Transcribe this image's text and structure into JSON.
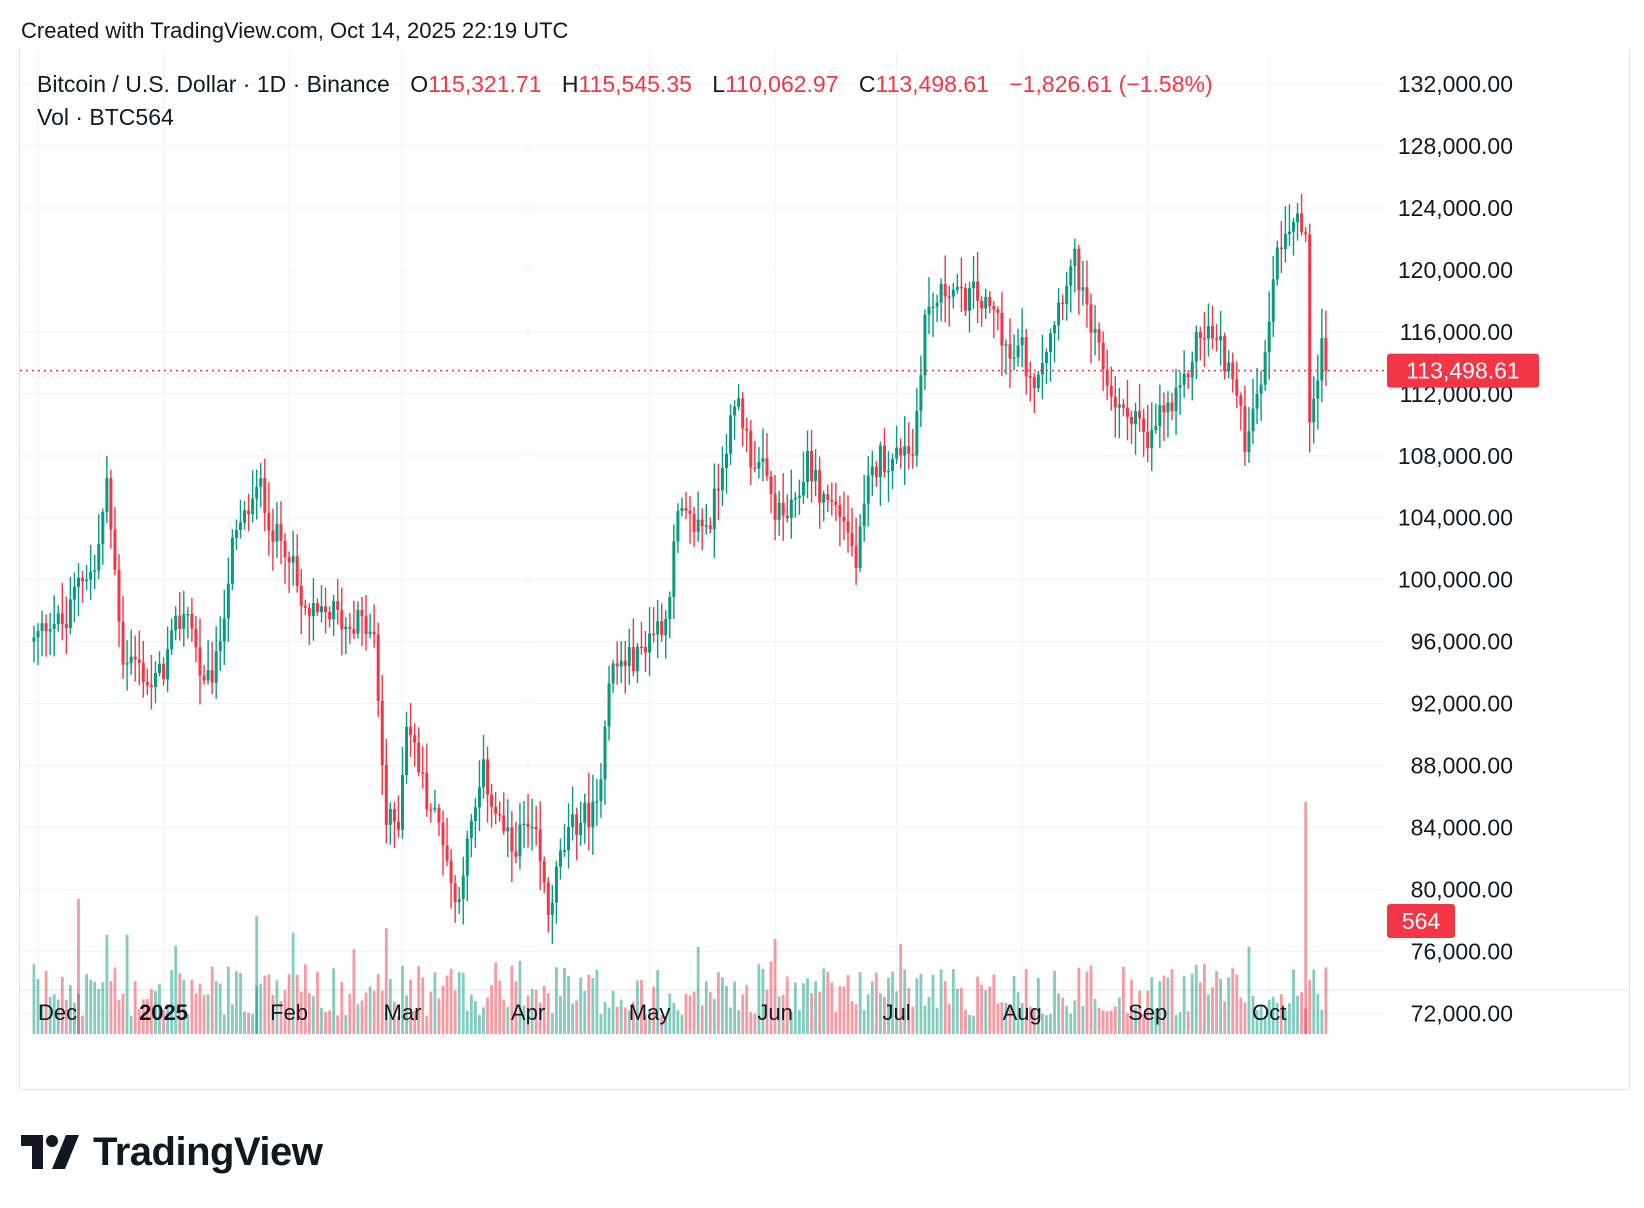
{
  "header": {
    "created_text": "Created with TradingView.com, Oct 14, 2025 22:19 UTC"
  },
  "legend": {
    "symbol": "Bitcoin / U.S. Dollar · 1D · Binance",
    "o_label": "O",
    "o_value": "115,321.71",
    "h_label": "H",
    "h_value": "115,545.35",
    "l_label": "L",
    "l_value": "110,062.97",
    "c_label": "C",
    "c_value": "113,498.61",
    "change": "−1,826.61 (−1.58%)",
    "vol_label": "Vol · BTC",
    "vol_value": "564"
  },
  "branding": {
    "name": "TradingView"
  },
  "colors": {
    "up": "#089981",
    "down": "#f23645",
    "grid": "#f0f3fa",
    "text": "#131722"
  },
  "chart_data": {
    "type": "candlestick",
    "title": "Bitcoin / U.S. Dollar · 1D · Binance",
    "y_ticks": [
      "72,000.00",
      "76,000.00",
      "80,000.00",
      "84,000.00",
      "88,000.00",
      "92,000.00",
      "96,000.00",
      "100,000.00",
      "104,000.00",
      "108,000.00",
      "112,000.00",
      "116,000.00",
      "120,000.00",
      "124,000.00",
      "128,000.00",
      "132,000.00"
    ],
    "y_range": [
      70600,
      134200
    ],
    "x_labels": [
      {
        "label": "Dec",
        "bold": false,
        "day": 0
      },
      {
        "label": "2025",
        "bold": true,
        "day": 31
      },
      {
        "label": "Feb",
        "bold": false,
        "day": 62
      },
      {
        "label": "Mar",
        "bold": false,
        "day": 90
      },
      {
        "label": "Apr",
        "bold": false,
        "day": 121
      },
      {
        "label": "May",
        "bold": false,
        "day": 151
      },
      {
        "label": "Jun",
        "bold": false,
        "day": 182
      },
      {
        "label": "Jul",
        "bold": false,
        "day": 212
      },
      {
        "label": "Aug",
        "bold": false,
        "day": 243
      },
      {
        "label": "Sep",
        "bold": false,
        "day": 274
      },
      {
        "label": "Oct",
        "bold": false,
        "day": 304
      }
    ],
    "last_price": 113498.61,
    "last_price_label": "113,498.61",
    "last_volume_label": "564",
    "close_path": [
      [
        -1,
        96000
      ],
      [
        3,
        97500
      ],
      [
        7,
        97000
      ],
      [
        10,
        100300
      ],
      [
        14,
        100500
      ],
      [
        17,
        106000
      ],
      [
        21,
        95000
      ],
      [
        24,
        94800
      ],
      [
        28,
        93000
      ],
      [
        31,
        94300
      ],
      [
        34,
        96800
      ],
      [
        37,
        98200
      ],
      [
        41,
        92800
      ],
      [
        44,
        94500
      ],
      [
        48,
        102000
      ],
      [
        51,
        104000
      ],
      [
        55,
        106000
      ],
      [
        58,
        103000
      ],
      [
        62,
        102000
      ],
      [
        65,
        98000
      ],
      [
        69,
        97500
      ],
      [
        73,
        98000
      ],
      [
        76,
        97000
      ],
      [
        79,
        97500
      ],
      [
        83,
        96000
      ],
      [
        86,
        84300
      ],
      [
        89,
        84500
      ],
      [
        91,
        91000
      ],
      [
        94,
        88000
      ],
      [
        96,
        86000
      ],
      [
        100,
        83500
      ],
      [
        103,
        79000
      ],
      [
        106,
        82700
      ],
      [
        110,
        87500
      ],
      [
        113,
        85000
      ],
      [
        117,
        82500
      ],
      [
        120,
        84000
      ],
      [
        123,
        83000
      ],
      [
        126,
        78500
      ],
      [
        129,
        82000
      ],
      [
        132,
        84000
      ],
      [
        135,
        84800
      ],
      [
        138,
        85000
      ],
      [
        141,
        94000
      ],
      [
        145,
        94800
      ],
      [
        148,
        95000
      ],
      [
        151,
        96500
      ],
      [
        155,
        97500
      ],
      [
        158,
        104000
      ],
      [
        162,
        103500
      ],
      [
        166,
        103800
      ],
      [
        170,
        109000
      ],
      [
        173,
        111500
      ],
      [
        176,
        108000
      ],
      [
        179,
        107000
      ],
      [
        182,
        104500
      ],
      [
        184,
        104000
      ],
      [
        187,
        104500
      ],
      [
        190,
        108000
      ],
      [
        193,
        105500
      ],
      [
        196,
        105000
      ],
      [
        199,
        104000
      ],
      [
        202,
        101000
      ],
      [
        205,
        106000
      ],
      [
        208,
        108000
      ],
      [
        211,
        107500
      ],
      [
        214,
        109000
      ],
      [
        216,
        108000
      ],
      [
        219,
        117000
      ],
      [
        222,
        118000
      ],
      [
        225,
        119000
      ],
      [
        228,
        118000
      ],
      [
        231,
        118500
      ],
      [
        234,
        117500
      ],
      [
        237,
        117000
      ],
      [
        240,
        114000
      ],
      [
        243,
        115000
      ],
      [
        245,
        112500
      ],
      [
        248,
        114500
      ],
      [
        251,
        117000
      ],
      [
        254,
        119500
      ],
      [
        256,
        120500
      ],
      [
        259,
        117000
      ],
      [
        262,
        114500
      ],
      [
        265,
        112000
      ],
      [
        268,
        110500
      ],
      [
        271,
        111000
      ],
      [
        274,
        108200
      ],
      [
        277,
        110800
      ],
      [
        280,
        111000
      ],
      [
        283,
        112500
      ],
      [
        286,
        115500
      ],
      [
        289,
        116000
      ],
      [
        292,
        115000
      ],
      [
        295,
        113000
      ],
      [
        298,
        109000
      ],
      [
        301,
        112500
      ],
      [
        303,
        114000
      ],
      [
        305,
        120000
      ],
      [
        308,
        123000
      ],
      [
        311,
        123500
      ],
      [
        313,
        121500
      ],
      [
        314,
        110800
      ],
      [
        317,
        115200
      ],
      [
        318,
        113500
      ]
    ]
  }
}
